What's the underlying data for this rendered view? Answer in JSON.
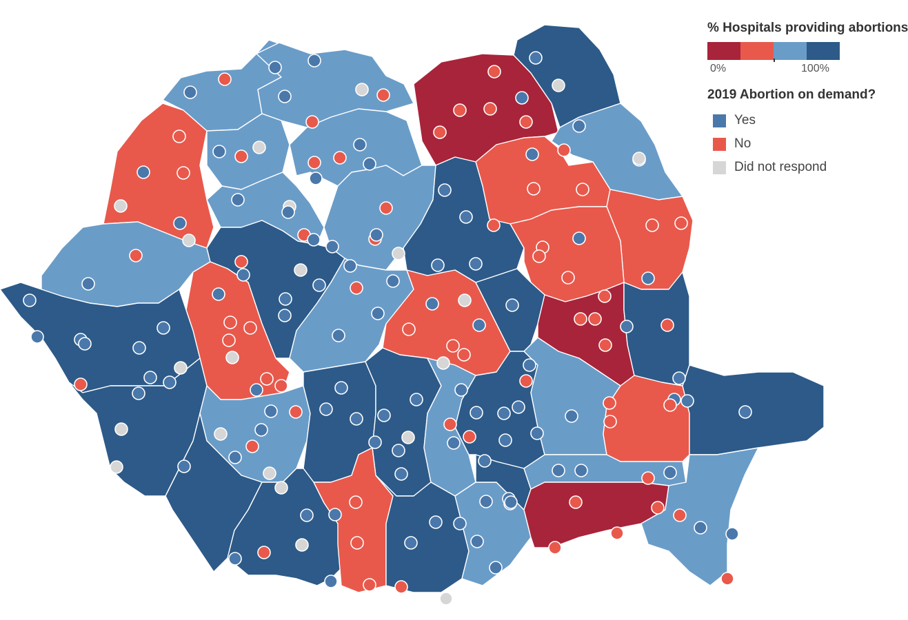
{
  "legend": {
    "share_title": "% Hospitals providing abortions",
    "scale_min_label": "0%",
    "scale_max_label": "100%",
    "scale_colors": [
      "#a8243a",
      "#e8594c",
      "#6a9cc8",
      "#2d5a88"
    ],
    "demand_title": "2019 Abortion on demand?",
    "categories": [
      {
        "label": "Yes",
        "color": "#4a78aa"
      },
      {
        "label": "No",
        "color": "#e8594c"
      },
      {
        "label": "Did not respond",
        "color": "#d6d6d6"
      }
    ]
  },
  "map": {
    "region": "Romania",
    "county_color_classes": {
      "class_0_25": "#a8243a",
      "class_25_50": "#e8594c",
      "class_50_75": "#6a9cc8",
      "class_75_100": "#2d5a88"
    }
  }
}
